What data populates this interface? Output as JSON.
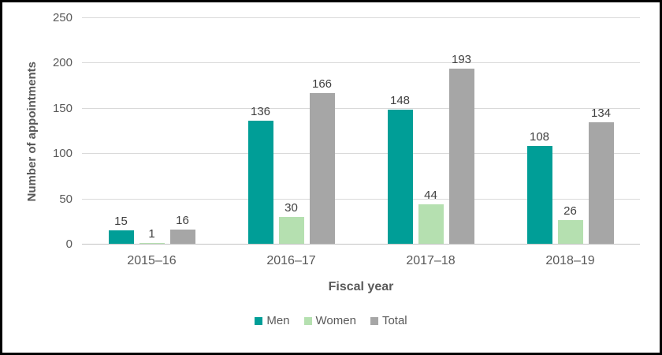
{
  "chart_data": {
    "type": "bar",
    "title": "",
    "categories": [
      "2015–16",
      "2016–17",
      "2017–18",
      "2018–19"
    ],
    "series": [
      {
        "name": "Men",
        "color": "#009e97",
        "values": [
          15,
          136,
          148,
          108
        ]
      },
      {
        "name": "Women",
        "color": "#b5e0b0",
        "values": [
          1,
          30,
          44,
          26
        ]
      },
      {
        "name": "Total",
        "color": "#a6a6a6",
        "values": [
          16,
          166,
          193,
          134
        ]
      }
    ],
    "xlabel": "Fiscal year",
    "ylabel": "Number of appointments",
    "ylim": [
      0,
      250
    ],
    "yticks": [
      0,
      50,
      100,
      150,
      200,
      250
    ],
    "grid": true,
    "data_labels": true,
    "legend_position": "bottom",
    "label_color": "#404040",
    "axis_text_color": "#595959",
    "gridline_color": "#d9d9d9"
  }
}
